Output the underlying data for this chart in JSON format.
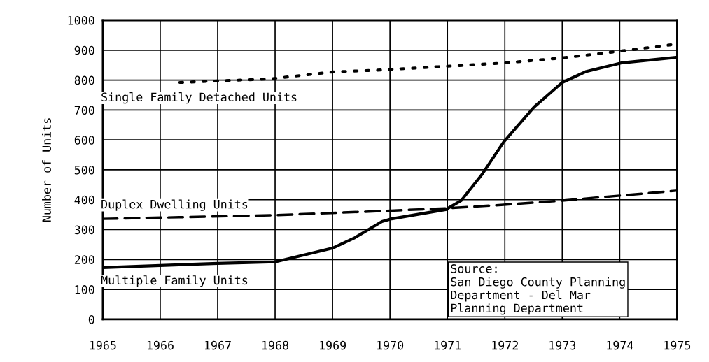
{
  "chart_data": {
    "type": "line",
    "ylabel": "Number of Units",
    "xlim": [
      1965,
      1975
    ],
    "ylim": [
      0,
      1000
    ],
    "xticks": [
      1965,
      1966,
      1967,
      1968,
      1969,
      1970,
      1971,
      1972,
      1973,
      1974,
      1975
    ],
    "yticks": [
      0,
      100,
      200,
      300,
      400,
      500,
      600,
      700,
      800,
      900,
      1000
    ],
    "grid": true,
    "marker": "none",
    "series": [
      {
        "name": "Single Family Detached Units",
        "color": "#000000",
        "line_style": "dotted",
        "x": [
          1966.34,
          1967.92,
          1968.99,
          1969.86,
          1970.97,
          1971.98,
          1973.0,
          1974.02,
          1974.98
        ],
        "values": [
          792,
          804,
          827,
          834,
          846,
          857,
          874,
          897,
          920
        ]
      },
      {
        "name": "Duplex Dwelling Units",
        "color": "#000000",
        "line_style": "dashed",
        "x": [
          1965,
          1967.96,
          1969.86,
          1970.97,
          1971.98,
          1973.0,
          1974.02,
          1974.98
        ],
        "values": [
          336,
          348,
          362,
          371,
          383,
          397,
          414,
          430
        ]
      },
      {
        "name": "Multiple Family Units",
        "color": "#000000",
        "line_style": "solid",
        "x": [
          1965,
          1967.0,
          1968.0,
          1969.0,
          1969.39,
          1969.86,
          1970.03,
          1970.97,
          1971.24,
          1971.6,
          1971.98,
          1972.51,
          1973.0,
          1973.42,
          1974.02,
          1974.98
        ],
        "values": [
          173,
          187,
          192,
          238,
          273,
          327,
          336,
          367,
          397,
          484,
          593,
          710,
          792,
          829,
          857,
          876
        ]
      }
    ],
    "annotations": [
      "Source:\nSan Diego County Planning\nDepartment - Del Mar\nPlanning Department"
    ]
  }
}
